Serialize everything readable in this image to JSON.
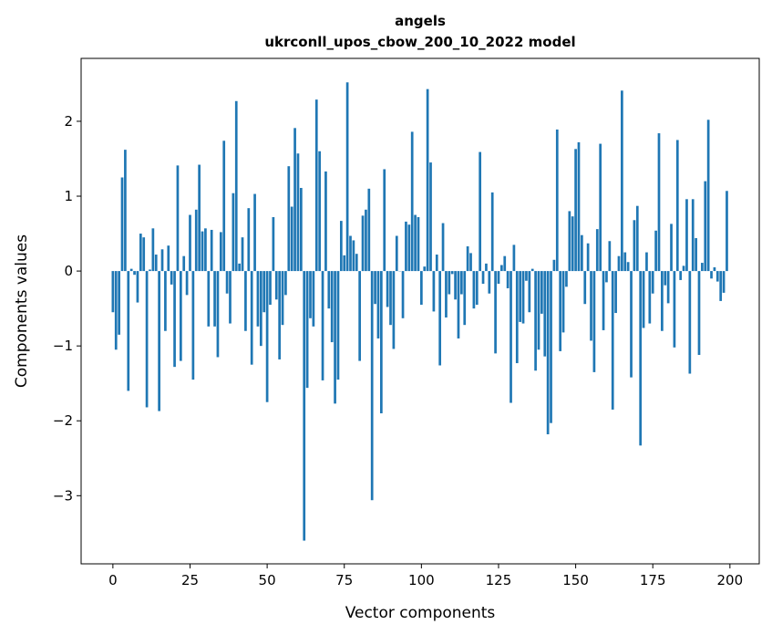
{
  "chart_data": {
    "type": "bar",
    "title": "angels",
    "subtitle": "ukrconll_upos_cbow_200_10_2022 model",
    "xlabel": "Vector components",
    "ylabel": "Components values",
    "xlim": [
      -10.3,
      209.5
    ],
    "ylim": [
      -3.91,
      2.84
    ],
    "xticks": [
      0,
      25,
      50,
      75,
      100,
      125,
      150,
      175,
      200
    ],
    "xtick_labels": [
      "0",
      "25",
      "50",
      "75",
      "100",
      "125",
      "150",
      "175",
      "200"
    ],
    "yticks": [
      -3,
      -2,
      -1,
      0,
      1,
      2
    ],
    "ytick_labels": [
      "−3",
      "−2",
      "−1",
      "0",
      "1",
      "2"
    ],
    "grid": false,
    "bar_color": "#1f77b4",
    "values": [
      -0.55,
      -1.05,
      -0.85,
      1.25,
      1.62,
      -1.6,
      0.03,
      -0.05,
      -0.42,
      0.5,
      0.45,
      -1.82,
      0.02,
      0.57,
      0.22,
      -1.87,
      0.29,
      -0.8,
      0.34,
      -0.18,
      -1.28,
      1.41,
      -1.2,
      0.2,
      -0.32,
      0.75,
      -1.45,
      0.82,
      1.42,
      0.53,
      0.57,
      -0.74,
      0.55,
      -0.74,
      -1.15,
      0.52,
      1.74,
      -0.3,
      -0.7,
      1.04,
      2.27,
      0.1,
      0.45,
      -0.8,
      0.84,
      -1.25,
      1.03,
      -0.74,
      -1.0,
      -0.55,
      -1.75,
      -0.45,
      0.72,
      -0.38,
      -1.18,
      -0.72,
      -0.32,
      1.4,
      0.86,
      1.91,
      1.57,
      1.11,
      -3.6,
      -1.56,
      -0.63,
      -0.74,
      2.29,
      1.6,
      -1.46,
      1.33,
      -0.5,
      -0.95,
      -1.77,
      -1.45,
      0.67,
      0.21,
      2.52,
      0.47,
      0.41,
      0.23,
      -1.2,
      0.74,
      0.82,
      1.1,
      -3.06,
      -0.44,
      -0.9,
      -1.9,
      1.36,
      -0.48,
      -0.72,
      -1.04,
      0.47,
      0.0,
      -0.63,
      0.66,
      0.62,
      1.86,
      0.75,
      0.72,
      -0.45,
      0.06,
      2.43,
      1.45,
      -0.54,
      0.22,
      -1.26,
      0.64,
      -0.62,
      -0.31,
      -0.04,
      -0.38,
      -0.9,
      -0.31,
      -0.72,
      0.33,
      0.24,
      -0.5,
      -0.45,
      1.59,
      -0.17,
      0.1,
      -0.3,
      1.05,
      -1.1,
      -0.17,
      0.08,
      0.2,
      -0.23,
      -1.76,
      0.35,
      -1.23,
      -0.68,
      -0.7,
      -0.13,
      -0.55,
      0.03,
      -1.33,
      -1.05,
      -0.57,
      -1.14,
      -2.18,
      -2.03,
      0.15,
      1.89,
      -1.07,
      -0.82,
      -0.21,
      0.8,
      0.73,
      1.63,
      1.72,
      0.48,
      -0.44,
      0.37,
      -0.93,
      -1.35,
      0.56,
      1.7,
      -0.79,
      -0.15,
      0.4,
      -1.85,
      -0.56,
      0.2,
      2.41,
      0.25,
      0.12,
      -1.42,
      0.68,
      0.87,
      -2.33,
      -0.76,
      0.25,
      -0.7,
      -0.3,
      0.54,
      1.84,
      -0.8,
      -0.19,
      -0.43,
      0.63,
      -1.02,
      1.75,
      -0.12,
      0.07,
      0.96,
      -1.37,
      0.96,
      0.44,
      -1.12,
      0.11,
      1.2,
      2.02,
      -0.1,
      0.05,
      -0.14,
      -0.4,
      -0.29,
      1.07
    ]
  }
}
